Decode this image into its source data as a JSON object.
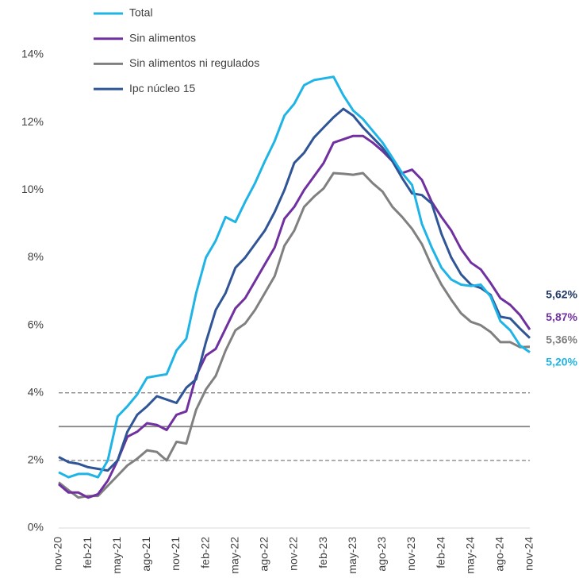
{
  "chart_data": {
    "type": "line",
    "categories": [
      "nov-20",
      null,
      null,
      "feb-21",
      null,
      null,
      "may-21",
      null,
      null,
      "ago-21",
      null,
      null,
      "nov-21",
      null,
      null,
      "feb-22",
      null,
      null,
      "may-22",
      null,
      null,
      "ago-22",
      null,
      null,
      "nov-22",
      null,
      null,
      "feb-23",
      null,
      null,
      "may-23",
      null,
      null,
      "ago-23",
      null,
      null,
      "nov-23",
      null,
      null,
      "feb-24",
      null,
      null,
      "may-24",
      null,
      null,
      "ago-24",
      null,
      null,
      "nov-24"
    ],
    "series": [
      {
        "name": "Total",
        "color": "#1fb4e6",
        "end_label": "5,20%",
        "values": [
          1.65,
          1.5,
          1.6,
          1.6,
          1.5,
          2.0,
          3.3,
          3.6,
          3.95,
          4.45,
          4.5,
          4.55,
          5.25,
          5.6,
          6.95,
          8.0,
          8.5,
          9.2,
          9.05,
          9.65,
          10.2,
          10.85,
          11.45,
          12.2,
          12.55,
          13.1,
          13.25,
          13.3,
          13.35,
          12.8,
          12.35,
          12.1,
          11.75,
          11.4,
          10.95,
          10.5,
          10.15,
          9.0,
          8.3,
          7.7,
          7.35,
          7.2,
          7.16,
          7.2,
          6.85,
          6.12,
          5.85,
          5.4,
          5.2
        ]
      },
      {
        "name": "Sin alimentos",
        "color": "#7030a0",
        "end_label": "5,87%",
        "values": [
          1.3,
          1.05,
          1.05,
          0.9,
          1.0,
          1.4,
          2.0,
          2.7,
          2.85,
          3.1,
          3.05,
          2.9,
          3.35,
          3.45,
          4.5,
          5.1,
          5.3,
          5.9,
          6.5,
          6.8,
          7.3,
          7.8,
          8.3,
          9.15,
          9.5,
          10.0,
          10.4,
          10.8,
          11.4,
          11.5,
          11.6,
          11.6,
          11.4,
          11.15,
          10.85,
          10.5,
          10.6,
          10.3,
          9.65,
          9.2,
          8.8,
          8.25,
          7.85,
          7.65,
          7.25,
          6.8,
          6.6,
          6.3,
          5.87
        ]
      },
      {
        "name": "Sin alimentos ni regulados",
        "color": "#808080",
        "end_label": "5,36%",
        "values": [
          1.35,
          1.12,
          0.9,
          0.95,
          0.95,
          1.25,
          1.55,
          1.85,
          2.05,
          2.3,
          2.25,
          2.0,
          2.55,
          2.5,
          3.5,
          4.1,
          4.5,
          5.25,
          5.85,
          6.05,
          6.45,
          6.95,
          7.45,
          8.35,
          8.8,
          9.5,
          9.8,
          10.05,
          10.5,
          10.48,
          10.45,
          10.5,
          10.2,
          9.95,
          9.5,
          9.2,
          8.85,
          8.4,
          7.75,
          7.2,
          6.75,
          6.35,
          6.1,
          6.0,
          5.8,
          5.5,
          5.5,
          5.35,
          5.36
        ]
      },
      {
        "name": "Ipc núcleo 15",
        "color": "#2f5597",
        "end_label": "5,62%",
        "values": [
          2.1,
          1.95,
          1.9,
          1.8,
          1.75,
          1.7,
          2.0,
          2.85,
          3.35,
          3.6,
          3.9,
          3.8,
          3.7,
          4.15,
          4.4,
          5.5,
          6.45,
          6.95,
          7.7,
          8.0,
          8.4,
          8.8,
          9.35,
          10.0,
          10.8,
          11.1,
          11.55,
          11.85,
          12.15,
          12.4,
          12.2,
          11.85,
          11.55,
          11.25,
          10.85,
          10.35,
          9.9,
          9.85,
          9.6,
          8.7,
          8.0,
          7.5,
          7.2,
          7.1,
          6.9,
          6.25,
          6.2,
          5.9,
          5.62
        ]
      }
    ],
    "ylim": [
      0,
      14
    ],
    "yticks": [
      {
        "value": 0,
        "label": "0%"
      },
      {
        "value": 2,
        "label": "2%"
      },
      {
        "value": 4,
        "label": "4%"
      },
      {
        "value": 6,
        "label": "6%"
      },
      {
        "value": 8,
        "label": "8%"
      },
      {
        "value": 10,
        "label": "10%"
      },
      {
        "value": 12,
        "label": "12%"
      },
      {
        "value": 14,
        "label": "14%"
      }
    ],
    "reference_lines": [
      {
        "value": 2,
        "style": "dashed"
      },
      {
        "value": 3,
        "style": "solid"
      },
      {
        "value": 4,
        "style": "dashed"
      }
    ],
    "legend": "top-left"
  }
}
